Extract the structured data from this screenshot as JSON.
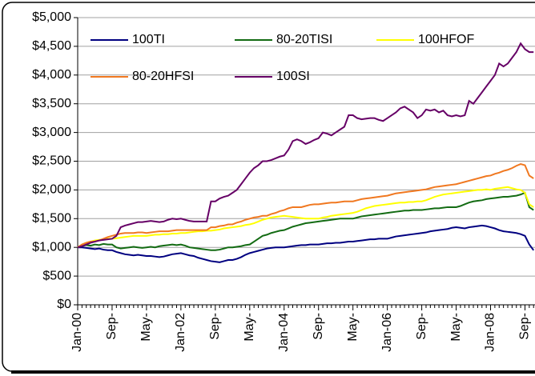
{
  "chart_data": {
    "type": "line",
    "categories": [
      "Jan-00",
      null,
      null,
      null,
      null,
      null,
      null,
      null,
      "Sep-",
      null,
      null,
      null,
      null,
      null,
      null,
      null,
      "May-",
      null,
      null,
      null,
      null,
      null,
      null,
      null,
      "Jan-02",
      null,
      null,
      null,
      null,
      null,
      null,
      null,
      "Sep-",
      null,
      null,
      null,
      null,
      null,
      null,
      null,
      "May-",
      null,
      null,
      null,
      null,
      null,
      null,
      null,
      "Jan-04",
      null,
      null,
      null,
      null,
      null,
      null,
      null,
      "Sep-",
      null,
      null,
      null,
      null,
      null,
      null,
      null,
      "May-",
      null,
      null,
      null,
      null,
      null,
      null,
      null,
      "Jan-06",
      null,
      null,
      null,
      null,
      null,
      null,
      null,
      "Sep-",
      null,
      null,
      null,
      null,
      null,
      null,
      null,
      "May-",
      null,
      null,
      null,
      null,
      null,
      null,
      null,
      "Jan-08",
      null,
      null,
      null,
      null,
      null,
      null,
      null,
      "Sep-",
      null,
      null
    ],
    "series": [
      {
        "name": "100TI",
        "color": "#000080",
        "values": [
          1000,
          1000,
          990,
          980,
          970,
          980,
          960,
          950,
          950,
          920,
          900,
          880,
          870,
          860,
          870,
          860,
          850,
          850,
          840,
          830,
          840,
          860,
          880,
          890,
          900,
          880,
          860,
          850,
          820,
          800,
          780,
          760,
          750,
          740,
          760,
          780,
          780,
          800,
          830,
          870,
          900,
          920,
          940,
          960,
          980,
          990,
          1000,
          1000,
          1000,
          1010,
          1020,
          1030,
          1040,
          1040,
          1050,
          1050,
          1050,
          1060,
          1070,
          1070,
          1080,
          1080,
          1090,
          1100,
          1100,
          1110,
          1120,
          1130,
          1140,
          1140,
          1150,
          1150,
          1150,
          1170,
          1190,
          1200,
          1210,
          1220,
          1230,
          1240,
          1250,
          1260,
          1280,
          1290,
          1300,
          1310,
          1320,
          1340,
          1350,
          1340,
          1330,
          1350,
          1360,
          1370,
          1380,
          1370,
          1350,
          1330,
          1300,
          1280,
          1270,
          1260,
          1250,
          1230,
          1200,
          1050,
          950
        ]
      },
      {
        "name": "80-20TISI",
        "color": "#136b13",
        "values": [
          1000,
          1020,
          1040,
          1030,
          1050,
          1040,
          1060,
          1050,
          1050,
          1000,
          980,
          990,
          1000,
          1010,
          1000,
          990,
          1000,
          1010,
          1000,
          1020,
          1030,
          1040,
          1050,
          1040,
          1050,
          1030,
          1000,
          990,
          980,
          970,
          960,
          950,
          950,
          960,
          980,
          1000,
          1000,
          1010,
          1020,
          1040,
          1050,
          1100,
          1150,
          1200,
          1220,
          1250,
          1270,
          1290,
          1300,
          1330,
          1360,
          1380,
          1400,
          1420,
          1430,
          1440,
          1450,
          1460,
          1470,
          1480,
          1490,
          1500,
          1500,
          1500,
          1500,
          1520,
          1540,
          1550,
          1560,
          1570,
          1580,
          1590,
          1600,
          1610,
          1620,
          1630,
          1640,
          1640,
          1650,
          1650,
          1650,
          1660,
          1670,
          1680,
          1680,
          1690,
          1700,
          1700,
          1700,
          1720,
          1750,
          1780,
          1800,
          1810,
          1820,
          1840,
          1850,
          1860,
          1870,
          1880,
          1880,
          1890,
          1900,
          1920,
          1950,
          1700,
          1650
        ]
      },
      {
        "name": "100HFOF",
        "color": "#ffff00",
        "values": [
          1000,
          1050,
          1080,
          1100,
          1120,
          1130,
          1140,
          1150,
          1150,
          1160,
          1170,
          1180,
          1190,
          1200,
          1200,
          1200,
          1200,
          1210,
          1220,
          1220,
          1230,
          1230,
          1240,
          1240,
          1250,
          1250,
          1260,
          1270,
          1280,
          1280,
          1290,
          1290,
          1300,
          1310,
          1330,
          1340,
          1350,
          1360,
          1370,
          1390,
          1400,
          1420,
          1450,
          1480,
          1500,
          1520,
          1530,
          1540,
          1550,
          1540,
          1530,
          1520,
          1510,
          1500,
          1500,
          1500,
          1500,
          1520,
          1530,
          1550,
          1560,
          1570,
          1580,
          1590,
          1600,
          1620,
          1650,
          1680,
          1700,
          1720,
          1730,
          1740,
          1750,
          1760,
          1770,
          1780,
          1780,
          1790,
          1790,
          1800,
          1800,
          1820,
          1850,
          1880,
          1900,
          1920,
          1930,
          1940,
          1950,
          1960,
          1970,
          1980,
          1990,
          2000,
          2000,
          2010,
          2000,
          2020,
          2030,
          2040,
          2050,
          2030,
          2010,
          2000,
          1950,
          1750,
          1700
        ]
      },
      {
        "name": "80-20HFSI",
        "color": "#f07820",
        "values": [
          1000,
          1050,
          1080,
          1100,
          1100,
          1120,
          1150,
          1180,
          1200,
          1220,
          1240,
          1250,
          1250,
          1250,
          1260,
          1260,
          1250,
          1260,
          1270,
          1280,
          1280,
          1280,
          1290,
          1300,
          1300,
          1300,
          1300,
          1300,
          1300,
          1300,
          1300,
          1350,
          1350,
          1370,
          1380,
          1400,
          1400,
          1430,
          1450,
          1480,
          1500,
          1520,
          1530,
          1550,
          1550,
          1580,
          1600,
          1630,
          1650,
          1680,
          1700,
          1700,
          1700,
          1720,
          1740,
          1750,
          1750,
          1760,
          1770,
          1780,
          1780,
          1790,
          1800,
          1800,
          1800,
          1820,
          1840,
          1850,
          1860,
          1870,
          1880,
          1890,
          1900,
          1920,
          1940,
          1950,
          1960,
          1970,
          1980,
          1990,
          2000,
          2010,
          2030,
          2050,
          2060,
          2070,
          2080,
          2090,
          2100,
          2120,
          2140,
          2160,
          2180,
          2200,
          2220,
          2240,
          2250,
          2280,
          2300,
          2330,
          2350,
          2380,
          2420,
          2450,
          2430,
          2250,
          2200
        ]
      },
      {
        "name": "100SI",
        "color": "#660066",
        "values": [
          1000,
          1020,
          1050,
          1080,
          1100,
          1120,
          1130,
          1140,
          1150,
          1200,
          1350,
          1380,
          1400,
          1420,
          1440,
          1440,
          1450,
          1460,
          1450,
          1440,
          1450,
          1480,
          1500,
          1490,
          1500,
          1480,
          1460,
          1450,
          1450,
          1450,
          1450,
          1800,
          1800,
          1850,
          1880,
          1900,
          1950,
          2000,
          2100,
          2200,
          2300,
          2380,
          2430,
          2500,
          2500,
          2520,
          2550,
          2580,
          2600,
          2700,
          2850,
          2880,
          2850,
          2800,
          2830,
          2870,
          2900,
          3000,
          2980,
          2950,
          3000,
          3050,
          3100,
          3300,
          3300,
          3250,
          3230,
          3240,
          3250,
          3250,
          3220,
          3200,
          3250,
          3300,
          3350,
          3420,
          3450,
          3400,
          3350,
          3250,
          3300,
          3400,
          3380,
          3400,
          3350,
          3380,
          3300,
          3280,
          3300,
          3280,
          3300,
          3550,
          3500,
          3600,
          3700,
          3800,
          3900,
          4000,
          4200,
          4150,
          4200,
          4300,
          4400,
          4550,
          4450,
          4400,
          4400
        ]
      }
    ],
    "ylim": [
      0,
      5000
    ],
    "yticks": [
      {
        "value": 0,
        "label": "$0"
      },
      {
        "value": 500,
        "label": "$500"
      },
      {
        "value": 1000,
        "label": "$1,000"
      },
      {
        "value": 1500,
        "label": "$1,500"
      },
      {
        "value": 2000,
        "label": "$2,000"
      },
      {
        "value": 2500,
        "label": "$2,500"
      },
      {
        "value": 3000,
        "label": "$3,000"
      },
      {
        "value": 3500,
        "label": "$3,500"
      },
      {
        "value": 4000,
        "label": "$4,000"
      },
      {
        "value": 4500,
        "label": "$4,500"
      },
      {
        "value": 5000,
        "label": "$5,000"
      }
    ],
    "grid": true,
    "legend": "top-left"
  }
}
